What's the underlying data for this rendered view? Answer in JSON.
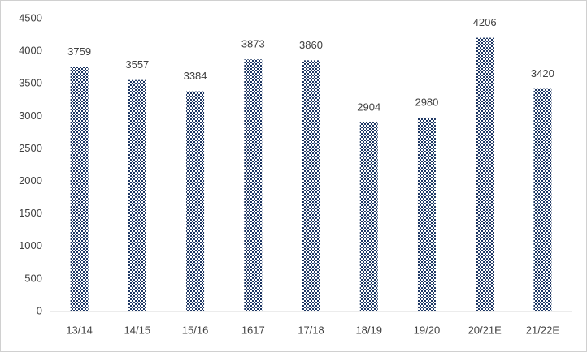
{
  "chart_data": {
    "type": "bar",
    "categories": [
      "13/14",
      "14/15",
      "15/16",
      "1617",
      "17/18",
      "18/19",
      "19/20",
      "20/21E",
      "21/22E"
    ],
    "values": [
      3759,
      3557,
      3384,
      3873,
      3860,
      2904,
      2980,
      4206,
      3420
    ],
    "color": "#1f3864",
    "ylim": [
      0,
      4500
    ],
    "yticks": [
      0,
      500,
      1000,
      1500,
      2000,
      2500,
      3000,
      3500,
      4000,
      4500
    ],
    "grid": false
  }
}
